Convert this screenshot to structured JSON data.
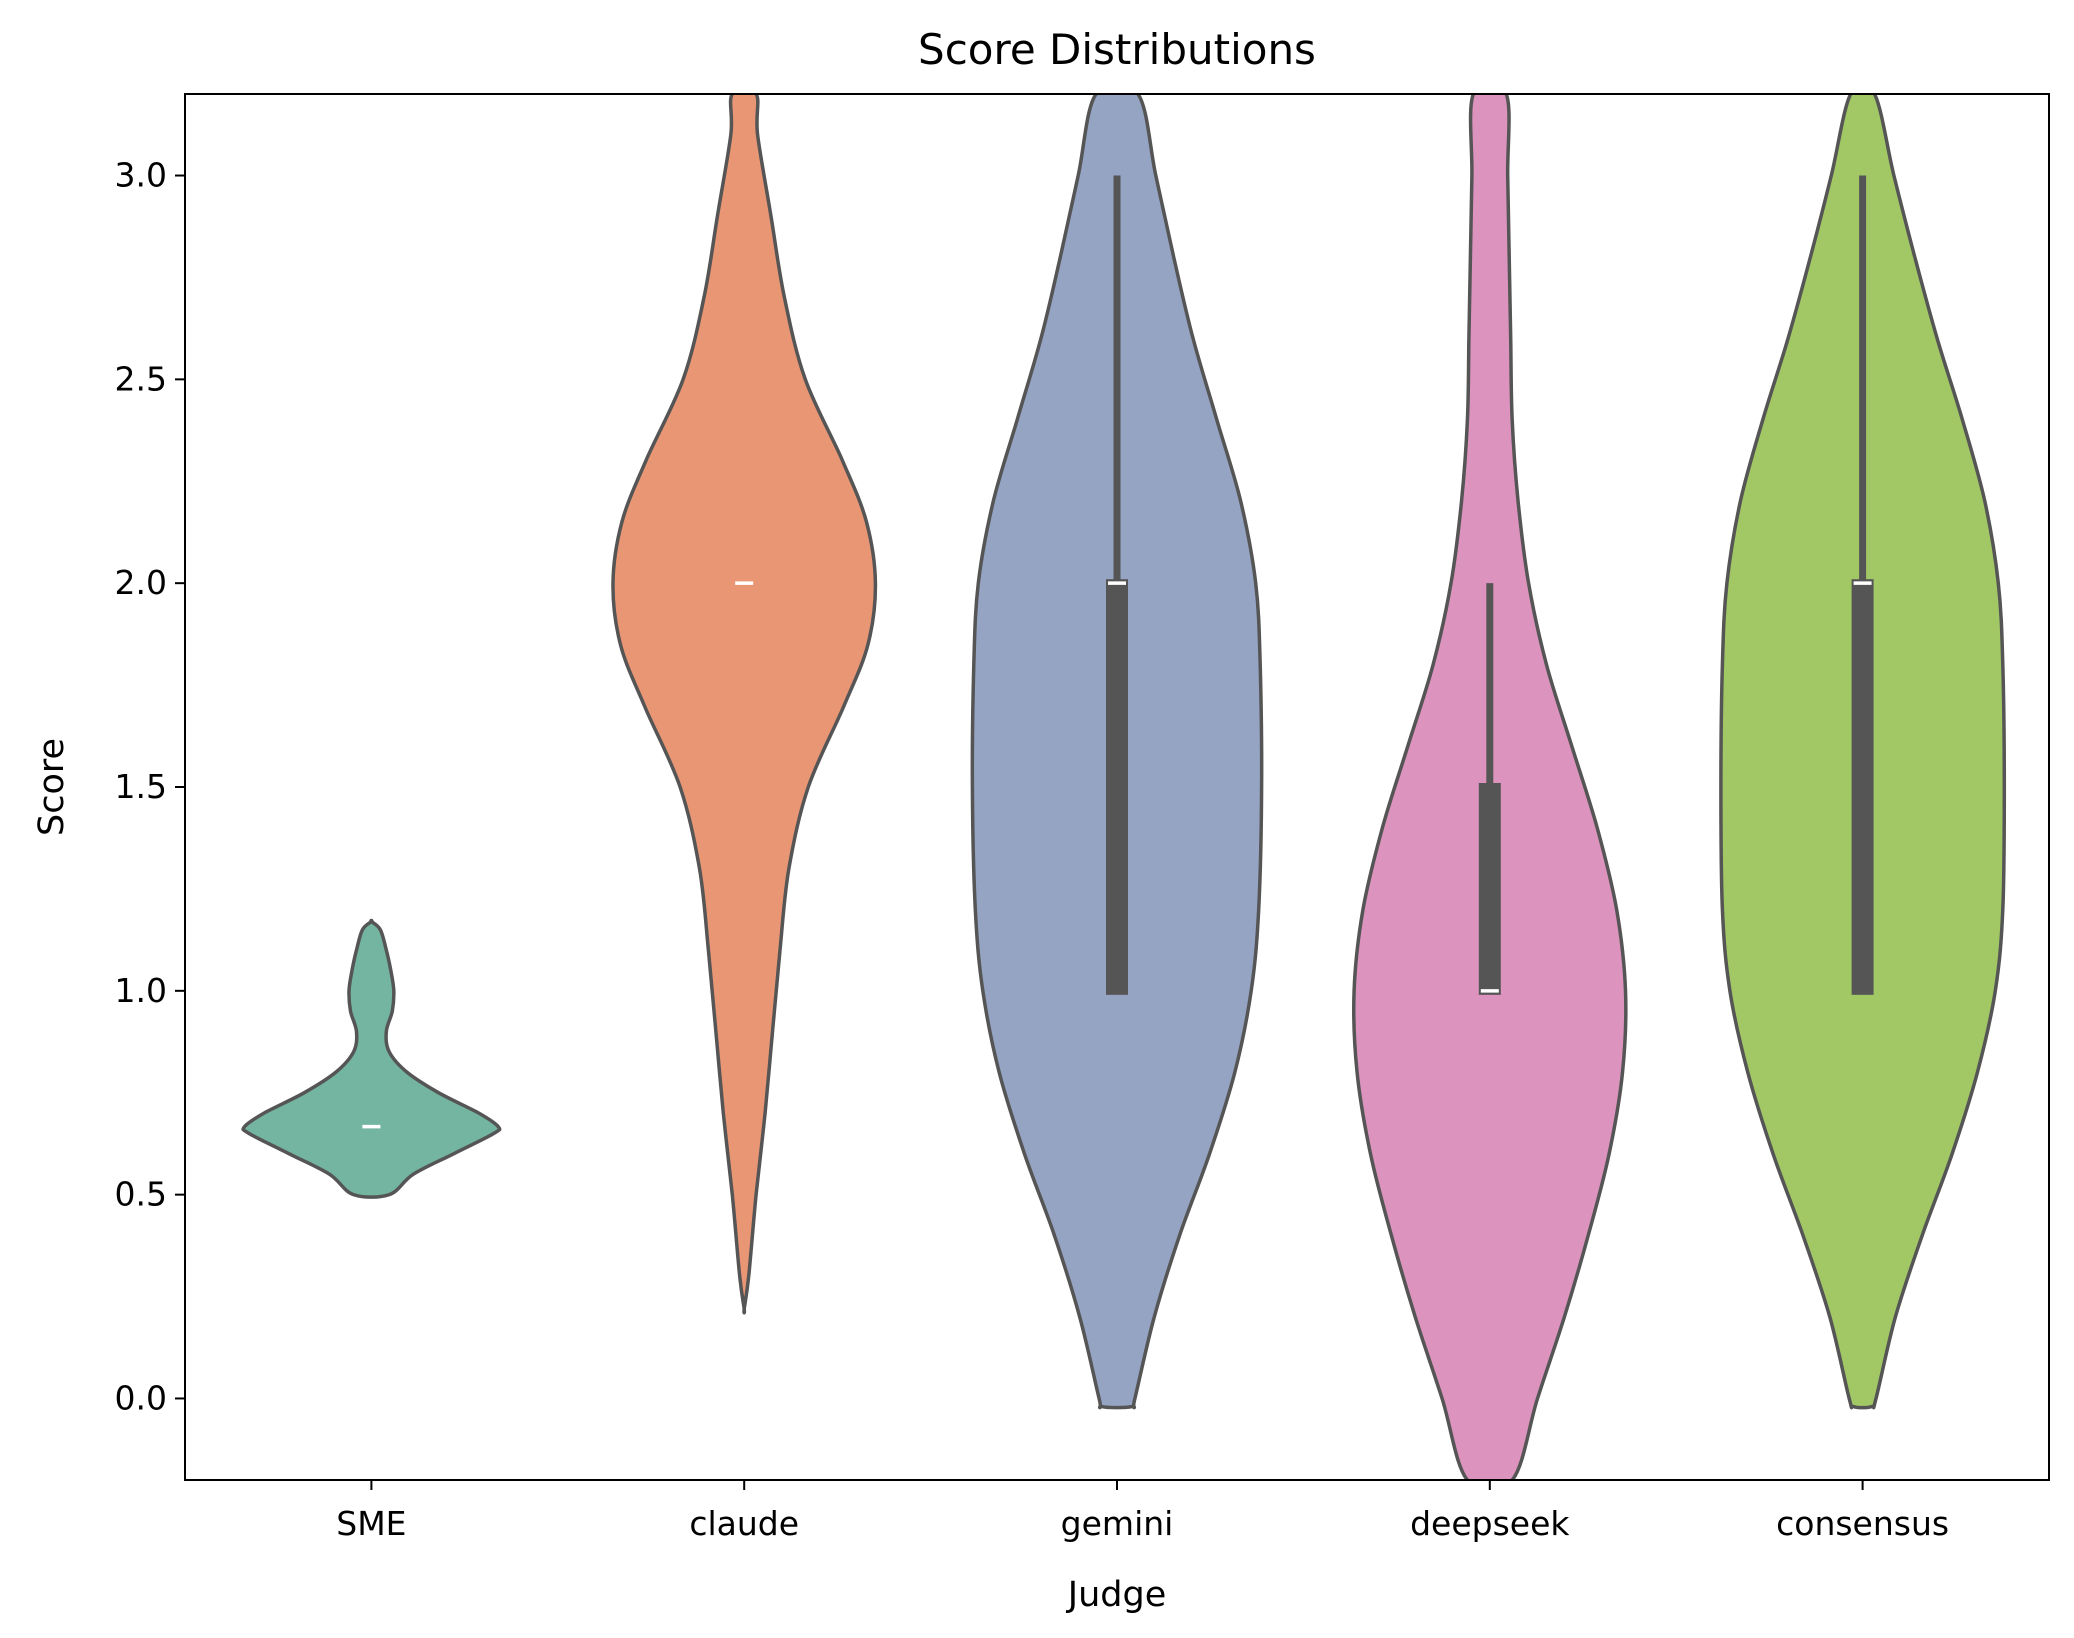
{
  "chart_data": {
    "type": "violin",
    "title": "Score Distributions",
    "xlabel": "Judge",
    "ylabel": "Score",
    "ylim": [
      -0.2,
      3.2
    ],
    "yticks": [
      "0.0",
      "0.5",
      "1.0",
      "1.5",
      "2.0",
      "2.5",
      "3.0"
    ],
    "grid": false,
    "categories": [
      "SME",
      "claude",
      "gemini",
      "deepseek",
      "consensus"
    ],
    "colors": [
      "#74b5a1",
      "#e99675",
      "#95a4c3",
      "#dc94bf",
      "#a2c866"
    ],
    "outline_color": "#555555",
    "violins": [
      {
        "name": "SME",
        "profile": [
          [
            0.5,
            0.12
          ],
          [
            0.55,
            0.28
          ],
          [
            0.6,
            0.55
          ],
          [
            0.65,
            0.82
          ],
          [
            0.667,
            0.85
          ],
          [
            0.7,
            0.72
          ],
          [
            0.75,
            0.45
          ],
          [
            0.8,
            0.24
          ],
          [
            0.85,
            0.12
          ],
          [
            0.9,
            0.1
          ],
          [
            0.95,
            0.14
          ],
          [
            1.0,
            0.15
          ],
          [
            1.05,
            0.13
          ],
          [
            1.1,
            0.1
          ],
          [
            1.15,
            0.06
          ],
          [
            1.17,
            0.0
          ]
        ],
        "median": 0.667,
        "box": null
      },
      {
        "name": "claude",
        "profile": [
          [
            0.22,
            0.0
          ],
          [
            0.3,
            0.03
          ],
          [
            0.5,
            0.08
          ],
          [
            0.7,
            0.14
          ],
          [
            0.9,
            0.19
          ],
          [
            1.1,
            0.24
          ],
          [
            1.3,
            0.3
          ],
          [
            1.5,
            0.43
          ],
          [
            1.7,
            0.67
          ],
          [
            1.85,
            0.83
          ],
          [
            2.0,
            0.88
          ],
          [
            2.15,
            0.82
          ],
          [
            2.3,
            0.66
          ],
          [
            2.5,
            0.41
          ],
          [
            2.7,
            0.27
          ],
          [
            2.9,
            0.18
          ],
          [
            3.1,
            0.09
          ],
          [
            3.2,
            0.08
          ]
        ],
        "median": 2.0,
        "box": null
      },
      {
        "name": "gemini",
        "profile": [
          [
            -0.02,
            0.1
          ],
          [
            0.0,
            0.12
          ],
          [
            0.2,
            0.25
          ],
          [
            0.4,
            0.42
          ],
          [
            0.6,
            0.62
          ],
          [
            0.8,
            0.79
          ],
          [
            1.0,
            0.9
          ],
          [
            1.2,
            0.95
          ],
          [
            1.5,
            0.97
          ],
          [
            1.8,
            0.96
          ],
          [
            2.0,
            0.93
          ],
          [
            2.2,
            0.83
          ],
          [
            2.4,
            0.67
          ],
          [
            2.6,
            0.51
          ],
          [
            2.8,
            0.38
          ],
          [
            3.0,
            0.26
          ],
          [
            3.2,
            0.14
          ]
        ],
        "median": 2.0,
        "box": [
          1.0,
          2.0
        ],
        "whiskers": [
          1.0,
          3.0
        ]
      },
      {
        "name": "deepseek",
        "profile": [
          [
            -0.2,
            0.15
          ],
          [
            0.0,
            0.32
          ],
          [
            0.2,
            0.5
          ],
          [
            0.4,
            0.66
          ],
          [
            0.6,
            0.8
          ],
          [
            0.8,
            0.89
          ],
          [
            1.0,
            0.91
          ],
          [
            1.2,
            0.85
          ],
          [
            1.4,
            0.72
          ],
          [
            1.6,
            0.55
          ],
          [
            1.8,
            0.38
          ],
          [
            2.0,
            0.26
          ],
          [
            2.2,
            0.19
          ],
          [
            2.4,
            0.15
          ],
          [
            2.6,
            0.14
          ],
          [
            2.8,
            0.13
          ],
          [
            3.0,
            0.12
          ],
          [
            3.2,
            0.11
          ]
        ],
        "median": 1.0,
        "box": [
          1.0,
          1.5
        ],
        "whiskers": [
          1.0,
          2.0
        ]
      },
      {
        "name": "consensus",
        "profile": [
          [
            -0.02,
            0.06
          ],
          [
            0.0,
            0.09
          ],
          [
            0.2,
            0.22
          ],
          [
            0.4,
            0.4
          ],
          [
            0.6,
            0.6
          ],
          [
            0.8,
            0.77
          ],
          [
            1.0,
            0.89
          ],
          [
            1.2,
            0.94
          ],
          [
            1.5,
            0.95
          ],
          [
            1.8,
            0.94
          ],
          [
            2.0,
            0.91
          ],
          [
            2.2,
            0.82
          ],
          [
            2.4,
            0.67
          ],
          [
            2.6,
            0.5
          ],
          [
            2.8,
            0.35
          ],
          [
            3.0,
            0.21
          ],
          [
            3.2,
            0.08
          ]
        ],
        "median": 2.0,
        "box": [
          1.0,
          2.0
        ],
        "whiskers": [
          1.0,
          3.0
        ]
      }
    ]
  }
}
